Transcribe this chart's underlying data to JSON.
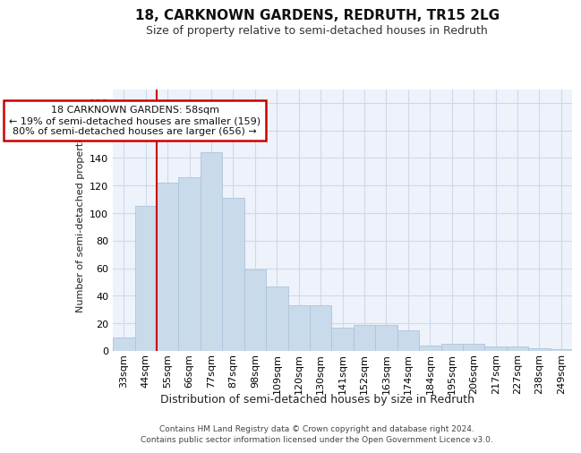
{
  "title": "18, CARKNOWN GARDENS, REDRUTH, TR15 2LG",
  "subtitle": "Size of property relative to semi-detached houses in Redruth",
  "xlabel": "Distribution of semi-detached houses by size in Redruth",
  "ylabel": "Number of semi-detached properties",
  "footer_line1": "Contains HM Land Registry data © Crown copyright and database right 2024.",
  "footer_line2": "Contains public sector information licensed under the Open Government Licence v3.0.",
  "categories": [
    "33sqm",
    "44sqm",
    "55sqm",
    "66sqm",
    "77sqm",
    "87sqm",
    "98sqm",
    "109sqm",
    "120sqm",
    "130sqm",
    "141sqm",
    "152sqm",
    "163sqm",
    "174sqm",
    "184sqm",
    "195sqm",
    "206sqm",
    "217sqm",
    "227sqm",
    "238sqm",
    "249sqm"
  ],
  "values": [
    10,
    105,
    122,
    126,
    144,
    111,
    59,
    47,
    33,
    33,
    17,
    19,
    19,
    15,
    4,
    5,
    5,
    3,
    3,
    2,
    1
  ],
  "bar_color": "#c9daea",
  "bar_edge_color": "#adc4dc",
  "vline_x": 2,
  "annotation_title": "18 CARKNOWN GARDENS: 58sqm",
  "annotation_line1": "← 19% of semi-detached houses are smaller (159)",
  "annotation_line2": "80% of semi-detached houses are larger (656) →",
  "annotation_box_color": "#ffffff",
  "annotation_box_edge_color": "#cc0000",
  "vline_color": "#cc0000",
  "ylim": [
    0,
    190
  ],
  "yticks": [
    0,
    20,
    40,
    60,
    80,
    100,
    120,
    140,
    160,
    180
  ],
  "grid_color": "#d0d8e8",
  "bg_color": "#eef2fa",
  "title_fontsize": 11,
  "subtitle_fontsize": 9,
  "xlabel_fontsize": 9,
  "ylabel_fontsize": 8,
  "tick_fontsize": 8,
  "annot_fontsize": 8
}
